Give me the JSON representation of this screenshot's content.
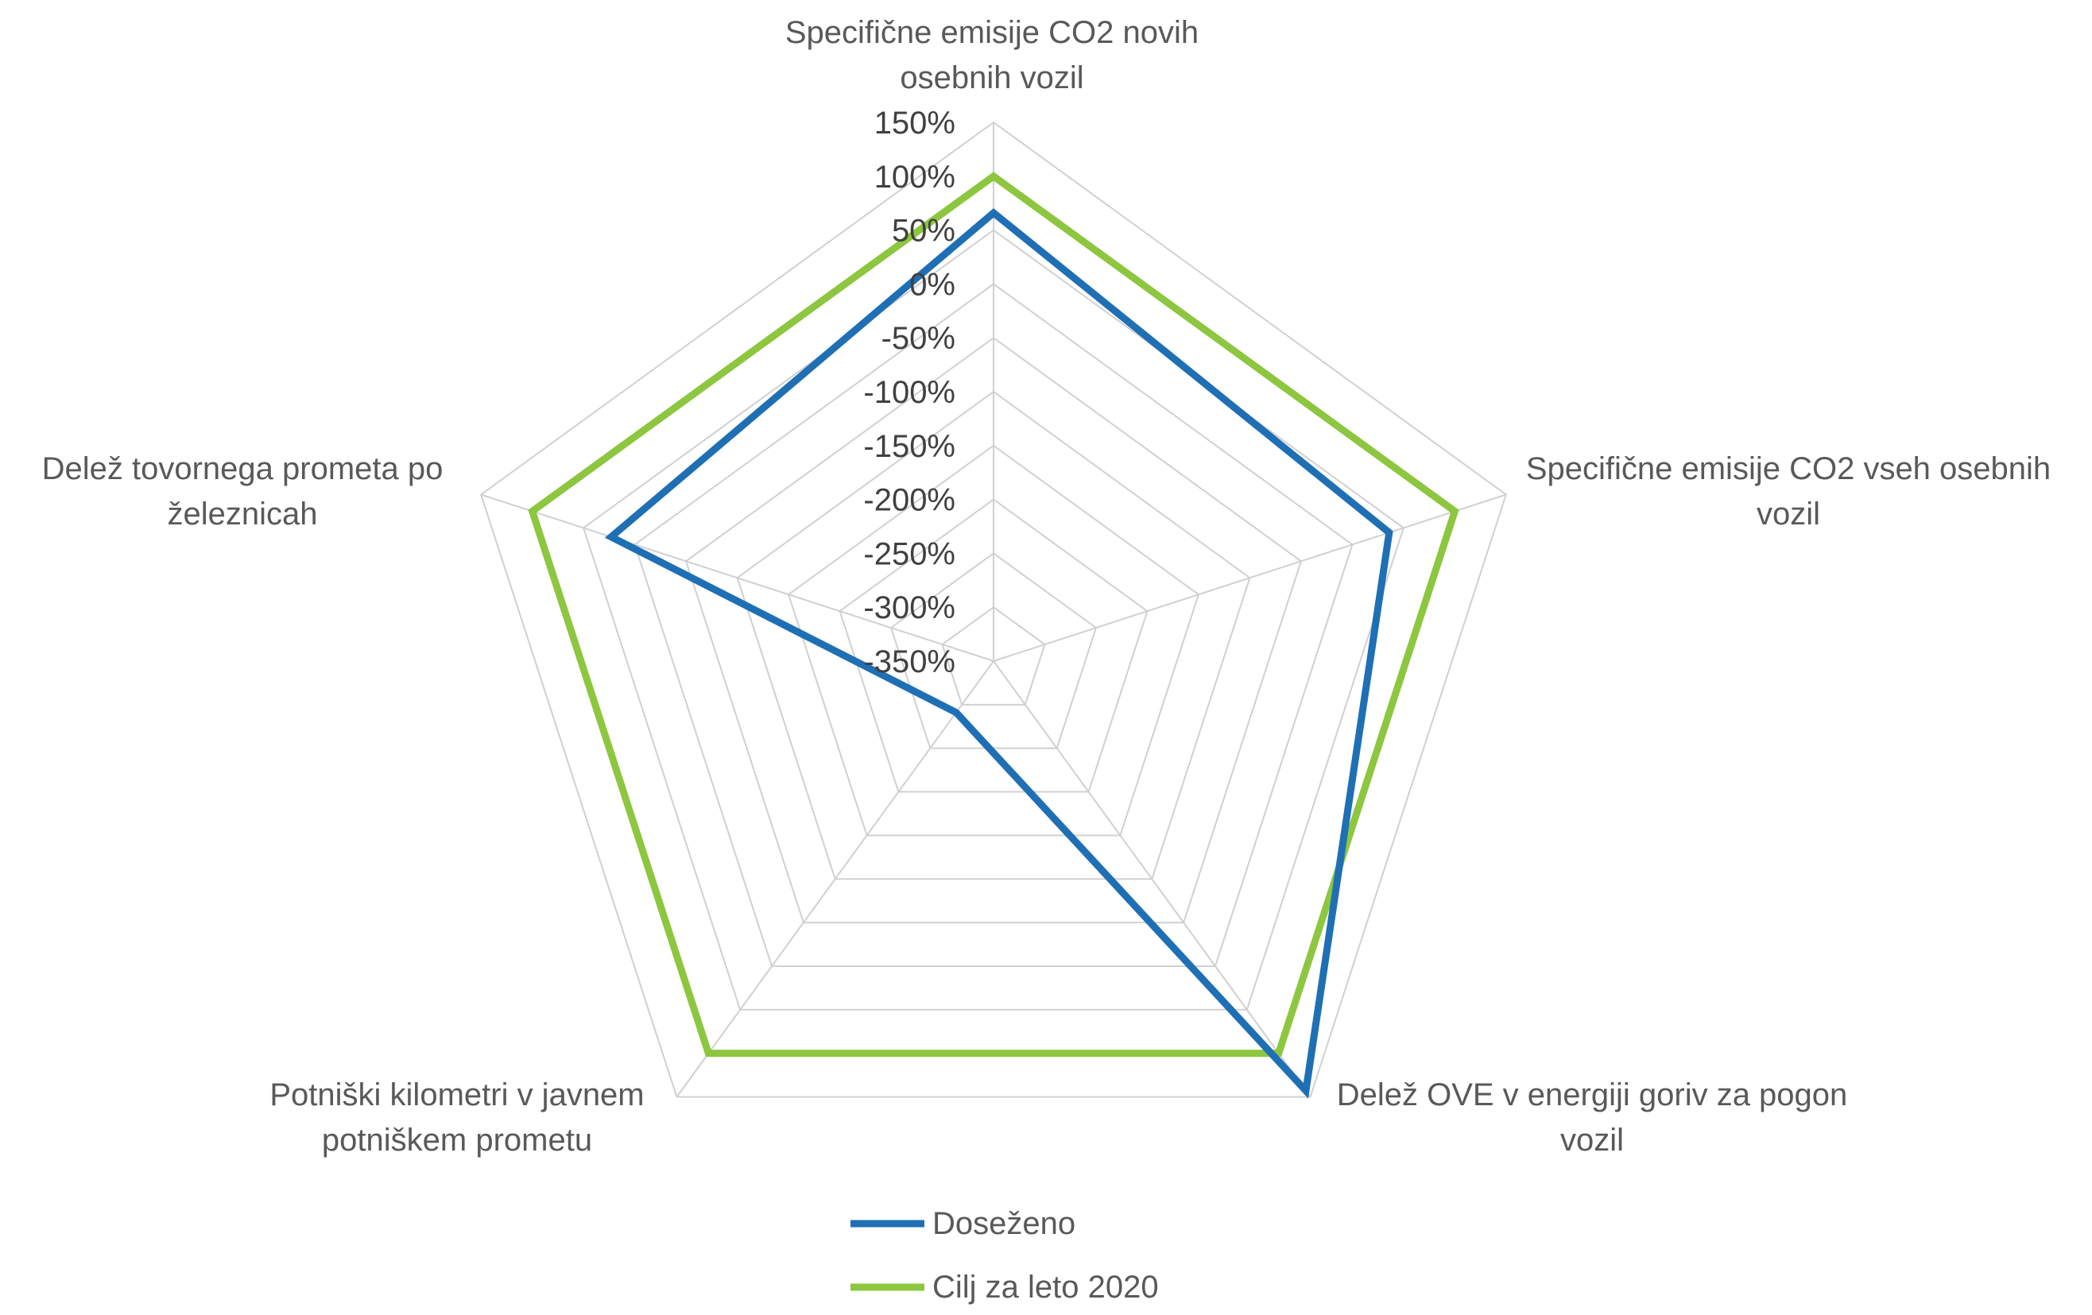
{
  "chart_data": {
    "type": "radar",
    "categories": [
      [
        "Specifične emisije CO2 novih",
        "osebnih vozil"
      ],
      [
        "Specifične emisije CO2 vseh osebnih",
        "vozil"
      ],
      [
        "Delež OVE v energiji goriv za pogon",
        "vozil"
      ],
      [
        "Potniški kilometri v javnem",
        "potniškem prometu"
      ],
      [
        "Delež tovornega prometa po",
        "železnicah"
      ]
    ],
    "radial_axis": {
      "min": -350,
      "max": 150,
      "step": 50,
      "tick_labels": [
        "-350%",
        "-300%",
        "-250%",
        "-200%",
        "-150%",
        "-100%",
        "-50%",
        "0%",
        "50%",
        "100%",
        "150%"
      ]
    },
    "series": [
      {
        "name": "Doseženo",
        "color": "#1f6fb4",
        "values": [
          66,
          36,
          143,
          -291,
          23
        ]
      },
      {
        "name": "Cilj za leto 2020",
        "color": "#8dc63f",
        "values": [
          100,
          100,
          100,
          100,
          100
        ]
      }
    ],
    "legend_position": "bottom",
    "grid": true
  }
}
